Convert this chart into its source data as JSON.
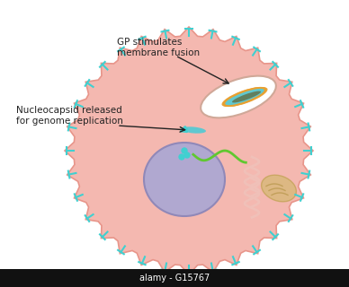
{
  "bg_color": "#ffffff",
  "cell_color": "#f4b8b0",
  "cell_edge_color": "#e8958a",
  "nucleus_color": "#b0a8d0",
  "nucleus_edge_color": "#9088b8",
  "spike_color": "#40d0d0",
  "label1": "GP stimulates\nmembrane fusion",
  "label2": "Nucleocapsid released\nfor genome replication",
  "watermark": "alamy - G15767",
  "virus_body_color": "#60c8d0",
  "virus_outer_color": "#e8a030",
  "virus_inner_color": "#608060",
  "rna_color": "#60c830",
  "endosome_color": "#ffffff",
  "endosome_edge": "#d0a898",
  "er_color": "#f0c0b8",
  "mito_color": "#d4b870"
}
